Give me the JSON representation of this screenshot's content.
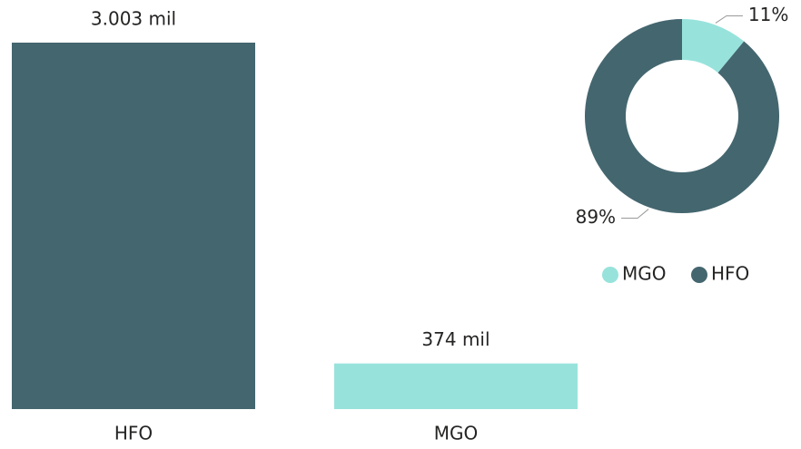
{
  "chart_data": [
    {
      "type": "bar",
      "categories": [
        "HFO",
        "MGO"
      ],
      "values": [
        3003,
        374
      ],
      "value_labels": [
        "3.003 mil",
        "374 mil"
      ],
      "colors": [
        "#44666f",
        "#97e3dc"
      ]
    },
    {
      "type": "donut",
      "categories": [
        "MGO",
        "HFO"
      ],
      "values": [
        11,
        89
      ],
      "value_labels": [
        "11%",
        "89%"
      ],
      "colors": [
        "#97e3dc",
        "#44666f"
      ],
      "legend": "bottom"
    }
  ]
}
